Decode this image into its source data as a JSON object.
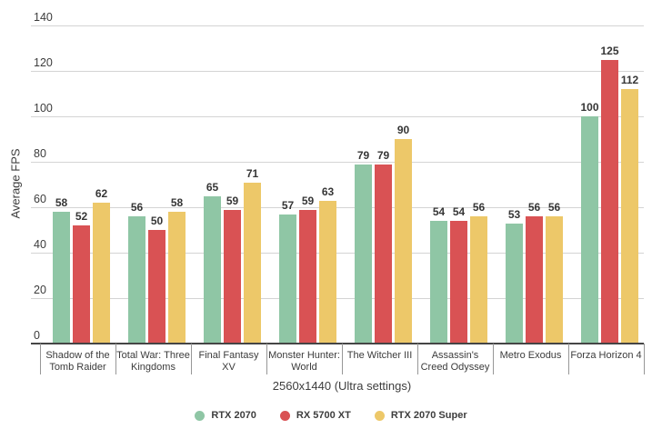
{
  "chart_data": {
    "type": "bar",
    "title": "",
    "categories": [
      "Shadow of the Tomb Raider",
      "Total War: Three Kingdoms",
      "Final Fantasy XV",
      "Monster Hunter: World",
      "The Witcher III",
      "Assassin's Creed Odyssey",
      "Metro Exodus",
      "Forza Horizon 4"
    ],
    "series": [
      {
        "name": "RTX 2070",
        "color": "#8fc6a5",
        "values": [
          58,
          56,
          65,
          57,
          79,
          54,
          53,
          100
        ]
      },
      {
        "name": "RX 5700 XT",
        "color": "#d95254",
        "values": [
          52,
          50,
          59,
          59,
          79,
          54,
          56,
          125
        ]
      },
      {
        "name": "RTX 2070 Super",
        "color": "#edc869",
        "values": [
          62,
          58,
          71,
          63,
          90,
          56,
          56,
          112
        ]
      }
    ],
    "xlabel": "2560x1440 (Ultra settings)",
    "ylabel": "Average FPS",
    "ylim": [
      0,
      140
    ],
    "ytick_step": 20,
    "yticks": [
      0,
      20,
      40,
      60,
      80,
      100,
      120,
      140
    ],
    "grid": true,
    "value_labels": true,
    "legend_position": "bottom",
    "colors": {
      "gridline": "#d4d4d4",
      "baseline": "#454545",
      "tick_text": "#3c3c3c",
      "value_text": "#363636",
      "background": "#ffffff"
    }
  }
}
